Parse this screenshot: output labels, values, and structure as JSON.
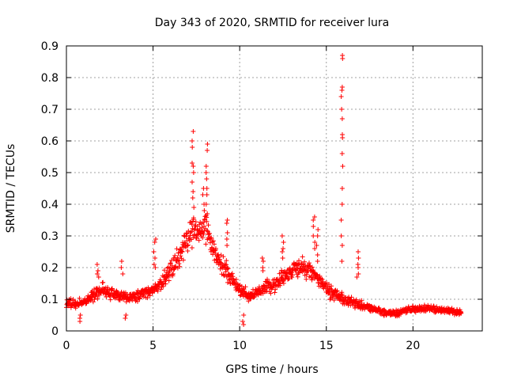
{
  "chart_data": {
    "type": "scatter",
    "title": "Day 343 of 2020, SRMTID for receiver lura",
    "xlabel": "GPS time / hours",
    "ylabel": "SRMTID / TECUs",
    "xlim": [
      0,
      24
    ],
    "ylim": [
      0,
      0.9
    ],
    "xticks": [
      0,
      5,
      10,
      15,
      20
    ],
    "yticks": [
      0,
      0.1,
      0.2,
      0.3,
      0.4,
      0.5,
      0.6,
      0.7,
      0.8,
      0.9
    ],
    "grid": true,
    "marker": "+",
    "color": "#ff0000",
    "profile": [
      [
        0.0,
        0.09
      ],
      [
        0.5,
        0.085
      ],
      [
        1.0,
        0.09
      ],
      [
        1.5,
        0.11
      ],
      [
        2.0,
        0.13
      ],
      [
        2.5,
        0.12
      ],
      [
        3.0,
        0.11
      ],
      [
        3.5,
        0.105
      ],
      [
        4.0,
        0.11
      ],
      [
        4.5,
        0.12
      ],
      [
        5.0,
        0.13
      ],
      [
        5.5,
        0.15
      ],
      [
        6.0,
        0.19
      ],
      [
        6.5,
        0.23
      ],
      [
        7.0,
        0.29
      ],
      [
        7.3,
        0.33
      ],
      [
        7.6,
        0.31
      ],
      [
        8.0,
        0.34
      ],
      [
        8.3,
        0.28
      ],
      [
        8.7,
        0.23
      ],
      [
        9.0,
        0.2
      ],
      [
        9.5,
        0.17
      ],
      [
        10.0,
        0.13
      ],
      [
        10.5,
        0.11
      ],
      [
        11.0,
        0.12
      ],
      [
        11.5,
        0.14
      ],
      [
        12.0,
        0.15
      ],
      [
        12.5,
        0.17
      ],
      [
        13.0,
        0.19
      ],
      [
        13.5,
        0.2
      ],
      [
        14.0,
        0.19
      ],
      [
        14.5,
        0.17
      ],
      [
        15.0,
        0.13
      ],
      [
        15.5,
        0.12
      ],
      [
        16.0,
        0.1
      ],
      [
        16.5,
        0.09
      ],
      [
        17.0,
        0.08
      ],
      [
        17.5,
        0.075
      ],
      [
        18.0,
        0.065
      ],
      [
        18.5,
        0.055
      ],
      [
        19.0,
        0.055
      ],
      [
        19.5,
        0.065
      ],
      [
        20.0,
        0.07
      ],
      [
        21.0,
        0.07
      ],
      [
        22.0,
        0.065
      ],
      [
        22.8,
        0.06
      ]
    ],
    "peaks": [
      {
        "x": 7.3,
        "values": [
          0.63,
          0.6,
          0.58,
          0.53,
          0.52,
          0.5,
          0.47,
          0.44,
          0.42,
          0.39
        ]
      },
      {
        "x": 8.1,
        "values": [
          0.59,
          0.57,
          0.52,
          0.5,
          0.48,
          0.45,
          0.43,
          0.4,
          0.37
        ]
      },
      {
        "x": 7.9,
        "values": [
          0.45,
          0.43,
          0.4,
          0.38
        ]
      },
      {
        "x": 15.9,
        "values": [
          0.87,
          0.86,
          0.77,
          0.76,
          0.74,
          0.7,
          0.67,
          0.62,
          0.61,
          0.56,
          0.52,
          0.45,
          0.4,
          0.35,
          0.3,
          0.27,
          0.22
        ]
      },
      {
        "x": 14.3,
        "values": [
          0.36,
          0.35,
          0.33,
          0.3,
          0.28,
          0.26
        ]
      },
      {
        "x": 14.5,
        "values": [
          0.32,
          0.3,
          0.27,
          0.24,
          0.22
        ]
      },
      {
        "x": 5.1,
        "values": [
          0.29,
          0.28,
          0.25,
          0.23,
          0.21,
          0.2
        ]
      },
      {
        "x": 9.3,
        "values": [
          0.35,
          0.34,
          0.31,
          0.29,
          0.27
        ]
      },
      {
        "x": 12.5,
        "values": [
          0.3,
          0.28,
          0.26,
          0.25,
          0.23
        ]
      },
      {
        "x": 11.3,
        "values": [
          0.23,
          0.22,
          0.2,
          0.19
        ]
      },
      {
        "x": 16.8,
        "values": [
          0.25,
          0.23,
          0.21,
          0.2,
          0.18,
          0.17
        ]
      },
      {
        "x": 1.8,
        "values": [
          0.21,
          0.19,
          0.18,
          0.17
        ]
      },
      {
        "x": 3.2,
        "values": [
          0.22,
          0.2,
          0.18
        ]
      },
      {
        "x": 10.2,
        "values": [
          0.02,
          0.03,
          0.05
        ]
      },
      {
        "x": 0.8,
        "values": [
          0.03,
          0.04,
          0.05
        ]
      },
      {
        "x": 3.4,
        "values": [
          0.04,
          0.05
        ]
      }
    ]
  }
}
